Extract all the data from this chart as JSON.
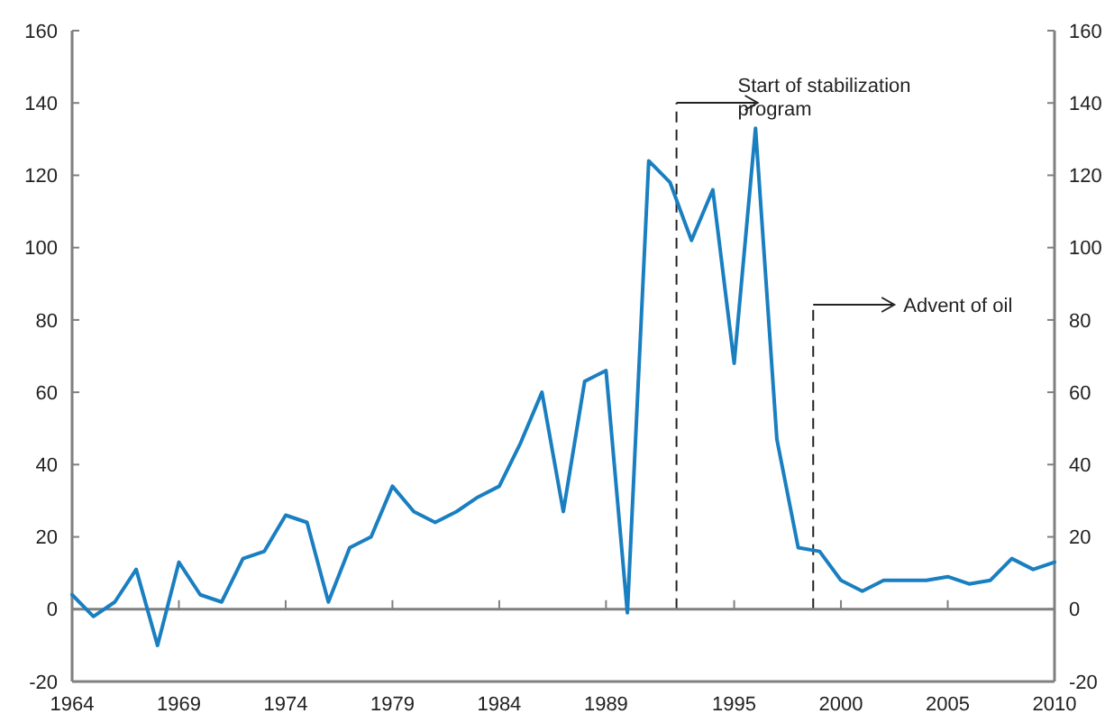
{
  "chart_data": {
    "type": "line",
    "x": [
      1964,
      1965,
      1966,
      1967,
      1968,
      1969,
      1970,
      1971,
      1972,
      1973,
      1974,
      1975,
      1976,
      1977,
      1978,
      1979,
      1980,
      1981,
      1982,
      1983,
      1984,
      1985,
      1986,
      1987,
      1988,
      1989,
      1990,
      1991,
      1992,
      1993,
      1994,
      1995,
      1996,
      1997,
      1998,
      1999,
      2000,
      2001,
      2002,
      2003,
      2004,
      2005,
      2006,
      2007,
      2008,
      2009,
      2010
    ],
    "series": [
      {
        "color": "#1a7fc1",
        "values": [
          4,
          -2,
          2,
          11,
          -10,
          13,
          4,
          2,
          14,
          16,
          26,
          24,
          2,
          17,
          20,
          34,
          27,
          24,
          27,
          31,
          34,
          46,
          60,
          27,
          63,
          66,
          -1,
          124,
          118,
          102,
          116,
          68,
          133,
          47,
          17,
          16,
          8,
          5,
          8,
          8,
          8,
          9,
          7,
          8,
          14,
          11,
          13
        ]
      }
    ],
    "xlim": [
      1964,
      2010
    ],
    "xticks": [
      1964,
      1969,
      1974,
      1979,
      1984,
      1989,
      1995,
      2000,
      2005,
      2010
    ],
    "ylim": [
      -20,
      160
    ],
    "yticks": [
      -20,
      0,
      20,
      40,
      60,
      80,
      100,
      120,
      140,
      160
    ],
    "y2lim": [
      -20,
      160
    ],
    "y2ticks": [
      -20,
      0,
      20,
      40,
      60,
      80,
      100,
      120,
      140,
      160
    ],
    "ref_lines": [
      {
        "axis": "y",
        "value": 0,
        "color": "#808080"
      },
      {
        "axis": "x",
        "value": 1992.3,
        "label": "Start of stabilization program",
        "color": "#222222",
        "line_style": "dashed"
      },
      {
        "axis": "x",
        "value": 1998.7,
        "label": "Advent of oil",
        "color": "#222222",
        "line_style": "dashed"
      }
    ],
    "grid": false,
    "marker": "none",
    "line_style": "solid"
  }
}
